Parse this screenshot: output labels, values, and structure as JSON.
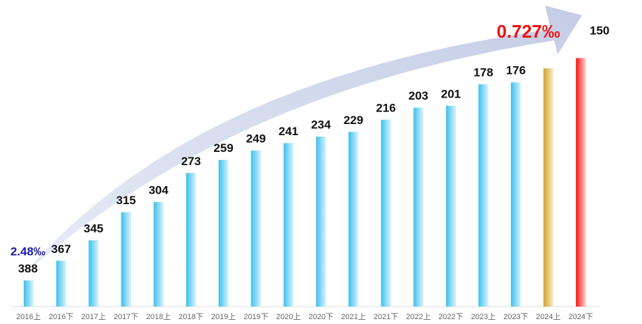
{
  "chart_data": {
    "type": "bar",
    "categories": [
      "2016上",
      "2016下",
      "2017上",
      "2017下",
      "2018上",
      "2018下",
      "2019上",
      "2019下",
      "2020上",
      "2020下",
      "2021上",
      "2021下",
      "2022上",
      "2022下",
      "2023上",
      "2023下",
      "2024上",
      "2024下"
    ],
    "values": [
      388,
      367,
      345,
      315,
      304,
      273,
      259,
      249,
      241,
      234,
      229,
      216,
      203,
      201,
      178,
      176,
      161,
      150
    ],
    "value_labels": [
      "388",
      "367",
      "345",
      "315",
      "304",
      "273",
      "259",
      "249",
      "241",
      "234",
      "229",
      "216",
      "203",
      "201",
      "178",
      "176",
      null,
      "150"
    ],
    "colors": [
      "#3cc1ee",
      "#3cc1ee",
      "#3cc1ee",
      "#3cc1ee",
      "#3cc1ee",
      "#3cc1ee",
      "#3cc1ee",
      "#3cc1ee",
      "#3cc1ee",
      "#3cc1ee",
      "#3cc1ee",
      "#3cc1ee",
      "#3cc1ee",
      "#3cc1ee",
      "#3cc1ee",
      "#3cc1ee",
      "#d4a020",
      "#ff1010"
    ],
    "ylim": [
      416,
      140
    ],
    "annotations": [
      {
        "text": "2.48‰",
        "color": "#1a1aa8"
      },
      {
        "text": "0.727‰",
        "color": "#ee1111"
      }
    ]
  }
}
